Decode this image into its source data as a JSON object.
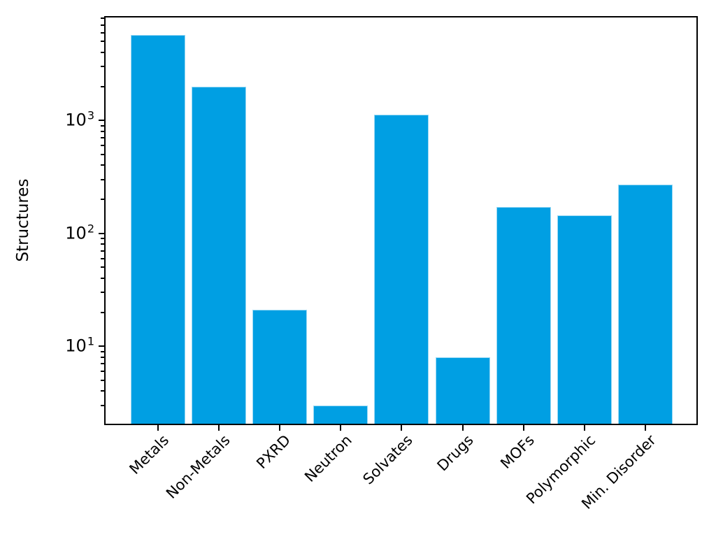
{
  "chart_data": {
    "type": "bar",
    "title": "",
    "xlabel": "",
    "ylabel": "Structures",
    "categories": [
      "Metals",
      "Non-Metals",
      "PXRD",
      "Neutron",
      "Solvates",
      "Drugs",
      "MOFs",
      "Polymorphic",
      "Min. Disorder"
    ],
    "values": [
      5700,
      2000,
      21,
      3,
      1130,
      8,
      170,
      145,
      270
    ],
    "yscale": "log",
    "ylim": [
      2,
      8400
    ],
    "y_major_ticks": [
      {
        "base": "10",
        "exp": "1",
        "value": 10
      },
      {
        "base": "10",
        "exp": "2",
        "value": 100
      },
      {
        "base": "10",
        "exp": "3",
        "value": 1000
      }
    ],
    "grid": false,
    "legend": "none",
    "bar_color": "#009fe3",
    "bar_edge_color": "#9bd9f4",
    "axis_color": "#000000",
    "background_color": "#ffffff",
    "bar_width_fraction": 0.9,
    "x_tick_rotation_deg": 45
  }
}
